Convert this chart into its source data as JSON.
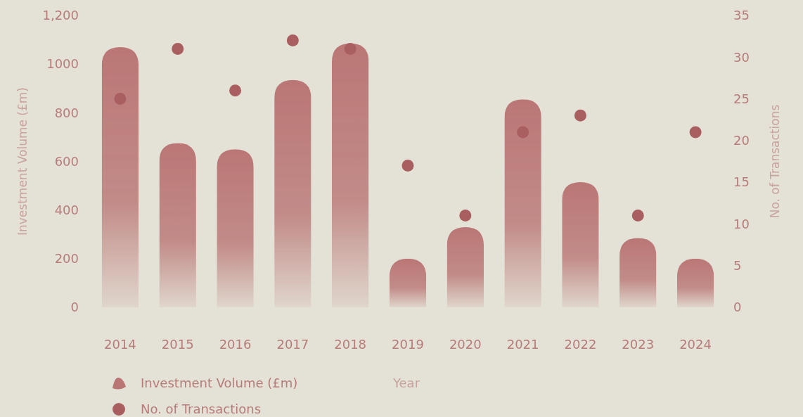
{
  "chart_data": {
    "type": "bar",
    "xlabel": "Year",
    "ylabel": "Investment Volume (£m)",
    "y2label": "No. of Transactions",
    "categories": [
      "2014",
      "2015",
      "2016",
      "2017",
      "2018",
      "2019",
      "2020",
      "2021",
      "2022",
      "2023",
      "2024"
    ],
    "series": [
      {
        "name": "Investment Volume (£m)",
        "color": "#b56a6a",
        "values": [
          1070,
          675,
          650,
          935,
          1085,
          200,
          330,
          855,
          515,
          285,
          200
        ]
      },
      {
        "name": "No. of Transactions",
        "type": "scatter",
        "axis": "y2",
        "color": "#a95f5f",
        "values": [
          25,
          31,
          26,
          32,
          31,
          17,
          11,
          21,
          23,
          11,
          21
        ]
      }
    ],
    "ylim": [
      0,
      1200
    ],
    "yticks": [
      0,
      200,
      400,
      600,
      800,
      1000,
      {
        "value": 1200,
        "label": "1,200"
      }
    ],
    "y2lim": [
      0,
      35
    ],
    "y2ticks": [
      0,
      5,
      10,
      15,
      20,
      25,
      30,
      35
    ],
    "grid": false,
    "legend": "bottom left",
    "marker": "circle"
  }
}
